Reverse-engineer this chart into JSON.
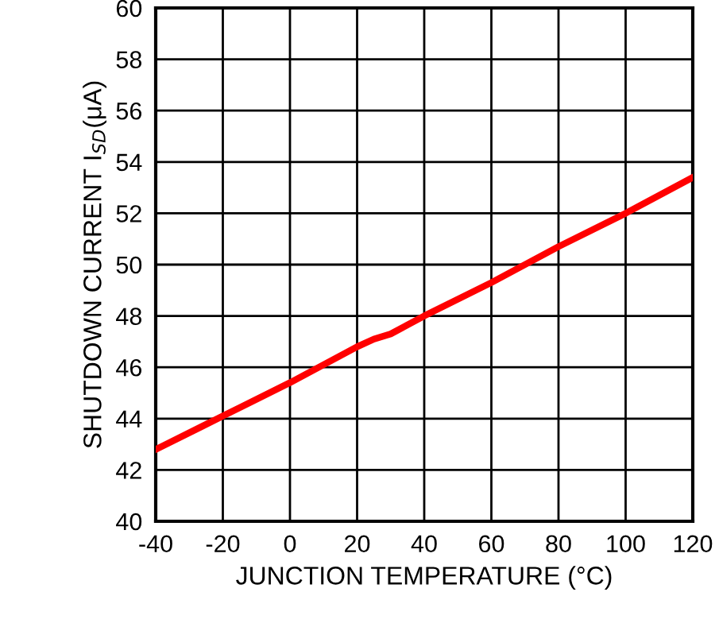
{
  "chart_data": {
    "type": "line",
    "xlabel": "JUNCTION TEMPERATURE (°C)",
    "ylabel": "SHUTDOWN CURRENT I$_{SD}$(μA)",
    "x": [
      -40,
      -20,
      0,
      20,
      25,
      30,
      40,
      60,
      80,
      100,
      120
    ],
    "series": [
      {
        "color": "#ff0000",
        "values": [
          42.8,
          44.1,
          45.4,
          46.8,
          47.1,
          47.3,
          48.0,
          49.3,
          50.7,
          52.0,
          53.4
        ]
      }
    ],
    "xlim": [
      -40,
      120
    ],
    "xticks": [
      -40,
      -20,
      0,
      20,
      40,
      60,
      80,
      100,
      120
    ],
    "ylim": [
      40,
      60
    ],
    "yticks": [
      40,
      42,
      44,
      46,
      48,
      50,
      52,
      54,
      56,
      58,
      60
    ],
    "grid": true,
    "marker": "none",
    "line_style": "solid"
  }
}
